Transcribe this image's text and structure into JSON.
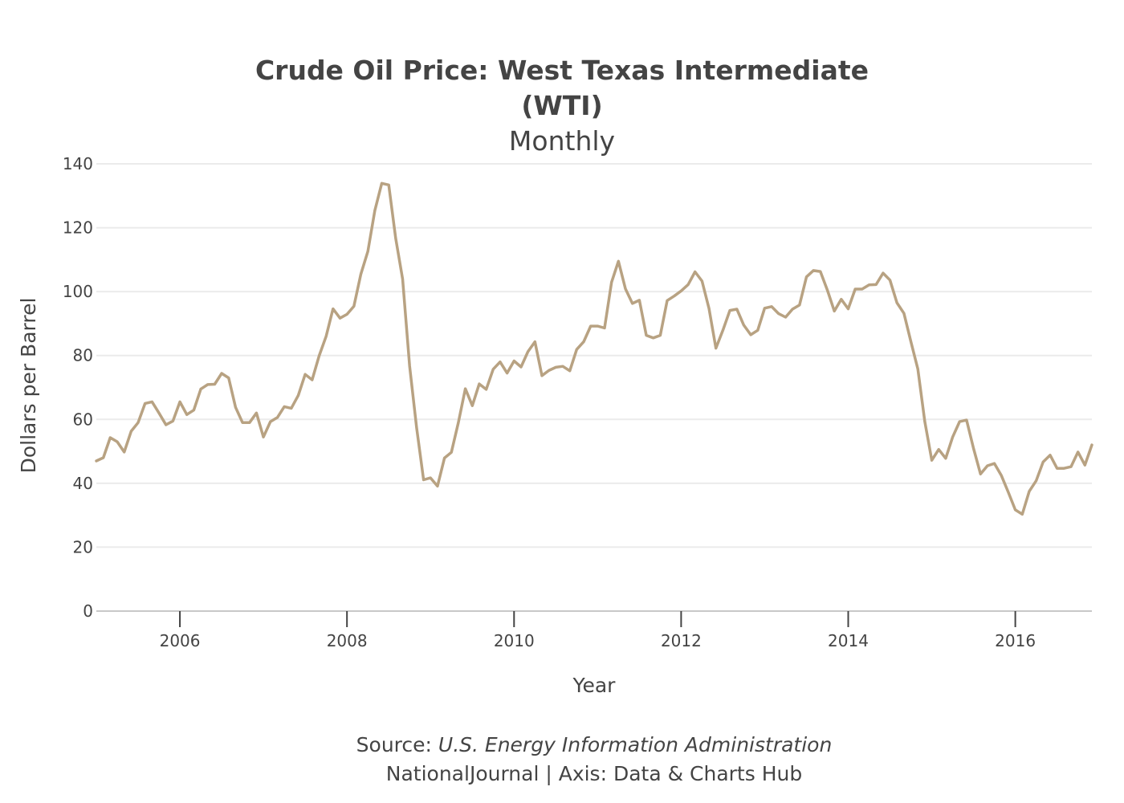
{
  "chart_data": {
    "type": "line",
    "title_line1": "Crude Oil Price: West Texas Intermediate",
    "title_line2": "(WTI)",
    "subtitle": "Monthly",
    "xlabel": "Year",
    "ylabel": "Dollars per Barrel",
    "source_prefix": "Source: ",
    "source_name": "U.S. Energy Information Administration",
    "credit": "NationalJournal | Axis: Data & Charts Hub",
    "ylim": [
      0,
      140
    ],
    "yticks": [
      "0",
      "20",
      "40",
      "60",
      "80",
      "100",
      "120",
      "140"
    ],
    "xlim": [
      "2005-01",
      "2016-12"
    ],
    "xticks": [
      "2006",
      "2008",
      "2010",
      "2012",
      "2014",
      "2016"
    ],
    "grid": true,
    "legend": false,
    "line_color": "#b8a282",
    "series": [
      {
        "x_start": "2005-01",
        "frequency": "monthly",
        "values": [
          47.0,
          48.0,
          54.3,
          53.0,
          49.8,
          56.3,
          59.0,
          65.0,
          65.5,
          62.0,
          58.3,
          59.5,
          65.5,
          61.5,
          62.9,
          69.5,
          70.9,
          71.0,
          74.4,
          73.0,
          63.8,
          59.0,
          59.0,
          62.0,
          54.5,
          59.3,
          60.6,
          64.0,
          63.5,
          67.5,
          74.1,
          72.4,
          79.9,
          86.0,
          94.6,
          91.7,
          92.9,
          95.4,
          105.5,
          112.6,
          125.4,
          133.9,
          133.4,
          116.6,
          103.9,
          76.7,
          57.4,
          41.1,
          41.7,
          39.1,
          47.9,
          49.7,
          59.0,
          69.6,
          64.3,
          71.1,
          69.4,
          75.7,
          78.0,
          74.5,
          78.3,
          76.4,
          81.2,
          84.3,
          73.7,
          75.3,
          76.3,
          76.6,
          75.2,
          81.9,
          84.3,
          89.2,
          89.2,
          88.6,
          102.9,
          109.5,
          100.9,
          96.3,
          97.3,
          86.3,
          85.5,
          86.3,
          97.2,
          98.6,
          100.2,
          102.2,
          106.2,
          103.3,
          94.7,
          82.3,
          87.9,
          94.1,
          94.5,
          89.5,
          86.5,
          87.9,
          94.8,
          95.3,
          93.1,
          92.0,
          94.5,
          95.8,
          104.6,
          106.6,
          106.3,
          100.5,
          93.9,
          97.6,
          94.6,
          100.8,
          100.8,
          102.1,
          102.2,
          105.8,
          103.6,
          96.5,
          93.2,
          84.4,
          75.8,
          59.3,
          47.2,
          50.6,
          47.8,
          54.5,
          59.3,
          59.8,
          50.9,
          42.9,
          45.5,
          46.2,
          42.4,
          37.2,
          31.7,
          30.3,
          37.5,
          40.8,
          46.7,
          48.8,
          44.7,
          44.7,
          45.2,
          49.8,
          45.7,
          52.0
        ]
      }
    ]
  }
}
